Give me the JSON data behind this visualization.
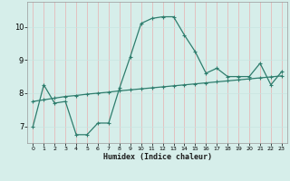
{
  "xlabel": "Humidex (Indice chaleur)",
  "x_ticks": [
    0,
    1,
    2,
    3,
    4,
    5,
    6,
    7,
    8,
    9,
    10,
    11,
    12,
    13,
    14,
    15,
    16,
    17,
    18,
    19,
    20,
    21,
    22,
    23
  ],
  "ylim": [
    6.5,
    10.75
  ],
  "xlim": [
    -0.5,
    23.5
  ],
  "y_ticks": [
    7,
    8,
    9,
    10
  ],
  "line1_x": [
    0,
    1,
    2,
    3,
    4,
    5,
    6,
    7,
    8,
    9,
    10,
    11,
    12,
    13,
    14,
    15,
    16,
    17,
    18,
    19,
    20,
    21,
    22,
    23
  ],
  "line1_y": [
    7.0,
    8.25,
    7.7,
    7.75,
    6.75,
    6.75,
    7.1,
    7.1,
    8.15,
    9.1,
    10.1,
    10.25,
    10.3,
    10.3,
    9.75,
    9.25,
    8.6,
    8.75,
    8.5,
    8.5,
    8.5,
    8.9,
    8.25,
    8.65
  ],
  "line2_x": [
    0,
    1,
    2,
    3,
    4,
    5,
    6,
    7,
    8,
    9,
    10,
    11,
    12,
    13,
    14,
    15,
    16,
    17,
    18,
    19,
    20,
    21,
    22,
    23
  ],
  "line2_y": [
    7.75,
    7.8,
    7.85,
    7.9,
    7.93,
    7.97,
    8.0,
    8.03,
    8.07,
    8.1,
    8.13,
    8.16,
    8.19,
    8.22,
    8.25,
    8.28,
    8.31,
    8.34,
    8.37,
    8.4,
    8.43,
    8.46,
    8.49,
    8.52
  ],
  "line_color": "#2e7d6d",
  "bg_color": "#d6eeea",
  "grid_color_v": "#e8b0b0",
  "grid_color_h": "#c8e4e0",
  "marker": "+"
}
